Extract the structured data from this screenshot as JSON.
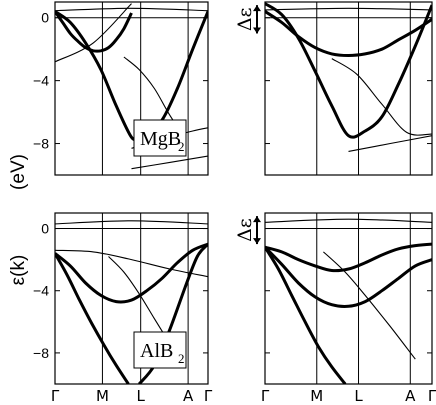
{
  "chart_data": [
    {
      "type": "line",
      "panel": "mgb2-left",
      "label_main": "MgB",
      "label_sub": "2",
      "y_ticks": [
        0,
        -4,
        -8
      ],
      "ylim": [
        -10,
        1
      ],
      "k_labels": [
        "Γ",
        "M",
        "L",
        "A",
        "Γ"
      ],
      "series": [
        {
          "weight": "thick",
          "x": [
            0,
            0.05,
            0.1,
            0.15,
            0.2,
            0.25,
            0.3,
            0.35,
            0.4,
            0.45,
            0.5
          ],
          "y": [
            0.4,
            -0.3,
            -1.0,
            -1.5,
            -1.9,
            -2.1,
            -2.1,
            -1.9,
            -1.4,
            -0.7,
            0.3
          ]
        },
        {
          "weight": "thick",
          "x": [
            0,
            0.1,
            0.2,
            0.3,
            0.4,
            0.5,
            0.55,
            0.6,
            0.7,
            0.8,
            0.9,
            1.0
          ],
          "y": [
            0.4,
            -0.3,
            -1.6,
            -3.3,
            -5.6,
            -7.6,
            -7.6,
            -7.4,
            -6.5,
            -4.5,
            -2.0,
            0.4
          ]
        },
        {
          "weight": "thin",
          "x": [
            0,
            0.5,
            1.0
          ],
          "y": [
            0.45,
            0.6,
            0.45
          ]
        },
        {
          "weight": "thin",
          "x": [
            0,
            0.25,
            0.5
          ],
          "y": [
            -2.8,
            -1.6,
            0.9
          ]
        },
        {
          "weight": "thin",
          "x": [
            0.5,
            0.6,
            0.75,
            0.9,
            1.0
          ],
          "y": [
            -8.3,
            -8.0,
            -7.6,
            -7.2,
            -7.0
          ]
        },
        {
          "weight": "thin",
          "x": [
            0.5,
            0.75,
            1.0
          ],
          "y": [
            -9.6,
            -9.2,
            -8.8
          ]
        },
        {
          "weight": "thin",
          "x": [
            0.45,
            0.55,
            0.65,
            0.75,
            0.85
          ],
          "y": [
            -2.5,
            -3.3,
            -4.5,
            -6.2,
            -7.6
          ]
        }
      ]
    },
    {
      "type": "line",
      "panel": "mgb2-right",
      "delta_label": "Δε",
      "y_ticks": [
        0,
        -4,
        -8
      ],
      "ylim": [
        -10,
        1
      ],
      "k_labels": [
        "Γ",
        "M",
        "L",
        "A",
        "Γ"
      ],
      "series": [
        {
          "weight": "thick",
          "x": [
            0,
            0.1,
            0.2,
            0.3,
            0.4,
            0.5,
            0.6,
            0.7,
            0.8,
            0.9,
            1.0
          ],
          "y": [
            0.4,
            -0.3,
            -1.2,
            -1.9,
            -2.3,
            -2.4,
            -2.3,
            -2.0,
            -1.4,
            -0.8,
            -0.1
          ]
        },
        {
          "weight": "thick",
          "x": [
            0,
            0.1,
            0.2,
            0.3,
            0.4,
            0.5,
            0.6,
            0.7,
            0.8,
            0.9,
            1.0
          ],
          "y": [
            0.9,
            0.2,
            -1.3,
            -3.4,
            -5.6,
            -7.5,
            -7.2,
            -6.3,
            -4.2,
            -1.8,
            0.8
          ]
        },
        {
          "weight": "thin",
          "x": [
            0,
            0.5,
            1.0
          ],
          "y": [
            0.5,
            0.6,
            0.5
          ]
        },
        {
          "weight": "thin",
          "x": [
            0.5,
            0.75,
            1.0
          ],
          "y": [
            -8.5,
            -8.0,
            -7.5
          ]
        },
        {
          "weight": "thin",
          "x": [
            0.4,
            0.55,
            0.7,
            0.85,
            1.0
          ],
          "y": [
            -2.6,
            -3.6,
            -5.5,
            -7.3,
            -7.4
          ]
        }
      ]
    },
    {
      "type": "line",
      "panel": "alb2-left",
      "label_main": "AlB",
      "label_sub": "2",
      "y_ticks": [
        0,
        -4,
        -8
      ],
      "ylim": [
        -10,
        1
      ],
      "k_labels": [
        "Γ",
        "M",
        "L",
        "A",
        "Γ"
      ],
      "series": [
        {
          "weight": "thick",
          "x": [
            0,
            0.1,
            0.2,
            0.3,
            0.4,
            0.5,
            0.6,
            0.7,
            0.8,
            0.9,
            1.0
          ],
          "y": [
            -1.6,
            -2.4,
            -3.5,
            -4.3,
            -4.7,
            -4.6,
            -4.0,
            -3.2,
            -2.2,
            -1.4,
            -1.0
          ]
        },
        {
          "weight": "thick",
          "x": [
            0,
            0.08,
            0.16,
            0.24,
            0.32,
            0.4,
            0.48
          ],
          "y": [
            -1.6,
            -3.0,
            -4.6,
            -6.1,
            -7.5,
            -8.8,
            -10.0
          ]
        },
        {
          "weight": "thick",
          "x": [
            0.55,
            0.65,
            0.75,
            0.85,
            0.93,
            1.0
          ],
          "y": [
            -10.0,
            -8.8,
            -6.5,
            -3.8,
            -1.8,
            -1.0
          ]
        },
        {
          "weight": "thin",
          "x": [
            0,
            0.5,
            1.0
          ],
          "y": [
            0.3,
            0.5,
            0.3
          ]
        },
        {
          "weight": "thin",
          "x": [
            0,
            0.25,
            0.5,
            0.75,
            1.0
          ],
          "y": [
            -1.4,
            -1.5,
            -2.0,
            -2.6,
            -3.1
          ]
        },
        {
          "weight": "thin",
          "x": [
            0.35,
            0.45,
            0.55,
            0.65,
            0.75
          ],
          "y": [
            -1.8,
            -2.8,
            -4.2,
            -5.8,
            -7.4
          ]
        }
      ]
    },
    {
      "type": "line",
      "panel": "alb2-right",
      "delta_label": "Δε",
      "y_ticks": [
        0,
        -4,
        -8
      ],
      "ylim": [
        -10,
        1
      ],
      "k_labels": [
        "Γ",
        "M",
        "L",
        "A",
        "Γ"
      ],
      "series": [
        {
          "weight": "thick",
          "x": [
            0,
            0.1,
            0.2,
            0.3,
            0.4,
            0.5,
            0.6,
            0.7,
            0.8,
            0.9,
            1.0
          ],
          "y": [
            -1.2,
            -2.3,
            -3.5,
            -4.4,
            -4.9,
            -5.0,
            -4.7,
            -4.0,
            -3.2,
            -2.4,
            -2.0
          ]
        },
        {
          "weight": "thick",
          "x": [
            0,
            0.1,
            0.2,
            0.3,
            0.4,
            0.5,
            0.6,
            0.7,
            0.8,
            0.9,
            1.0
          ],
          "y": [
            -1.2,
            -1.5,
            -2.0,
            -2.4,
            -2.7,
            -2.6,
            -2.2,
            -1.7,
            -1.3,
            -1.1,
            -1.0
          ]
        },
        {
          "weight": "thick",
          "x": [
            0,
            0.08,
            0.16,
            0.24,
            0.32,
            0.4,
            0.48
          ],
          "y": [
            -1.2,
            -2.6,
            -4.3,
            -6.0,
            -7.6,
            -8.9,
            -10.0
          ]
        },
        {
          "weight": "thin",
          "x": [
            0,
            0.5,
            1.0
          ],
          "y": [
            0.4,
            0.6,
            0.4
          ]
        },
        {
          "weight": "thin",
          "x": [
            0.35,
            0.48,
            0.6,
            0.75,
            0.9
          ],
          "y": [
            -1.5,
            -2.8,
            -4.3,
            -6.3,
            -8.4
          ]
        }
      ]
    }
  ],
  "axis": {
    "ylabel_energy": "(eV)",
    "ylabel_dispersion": "ε(k)"
  }
}
